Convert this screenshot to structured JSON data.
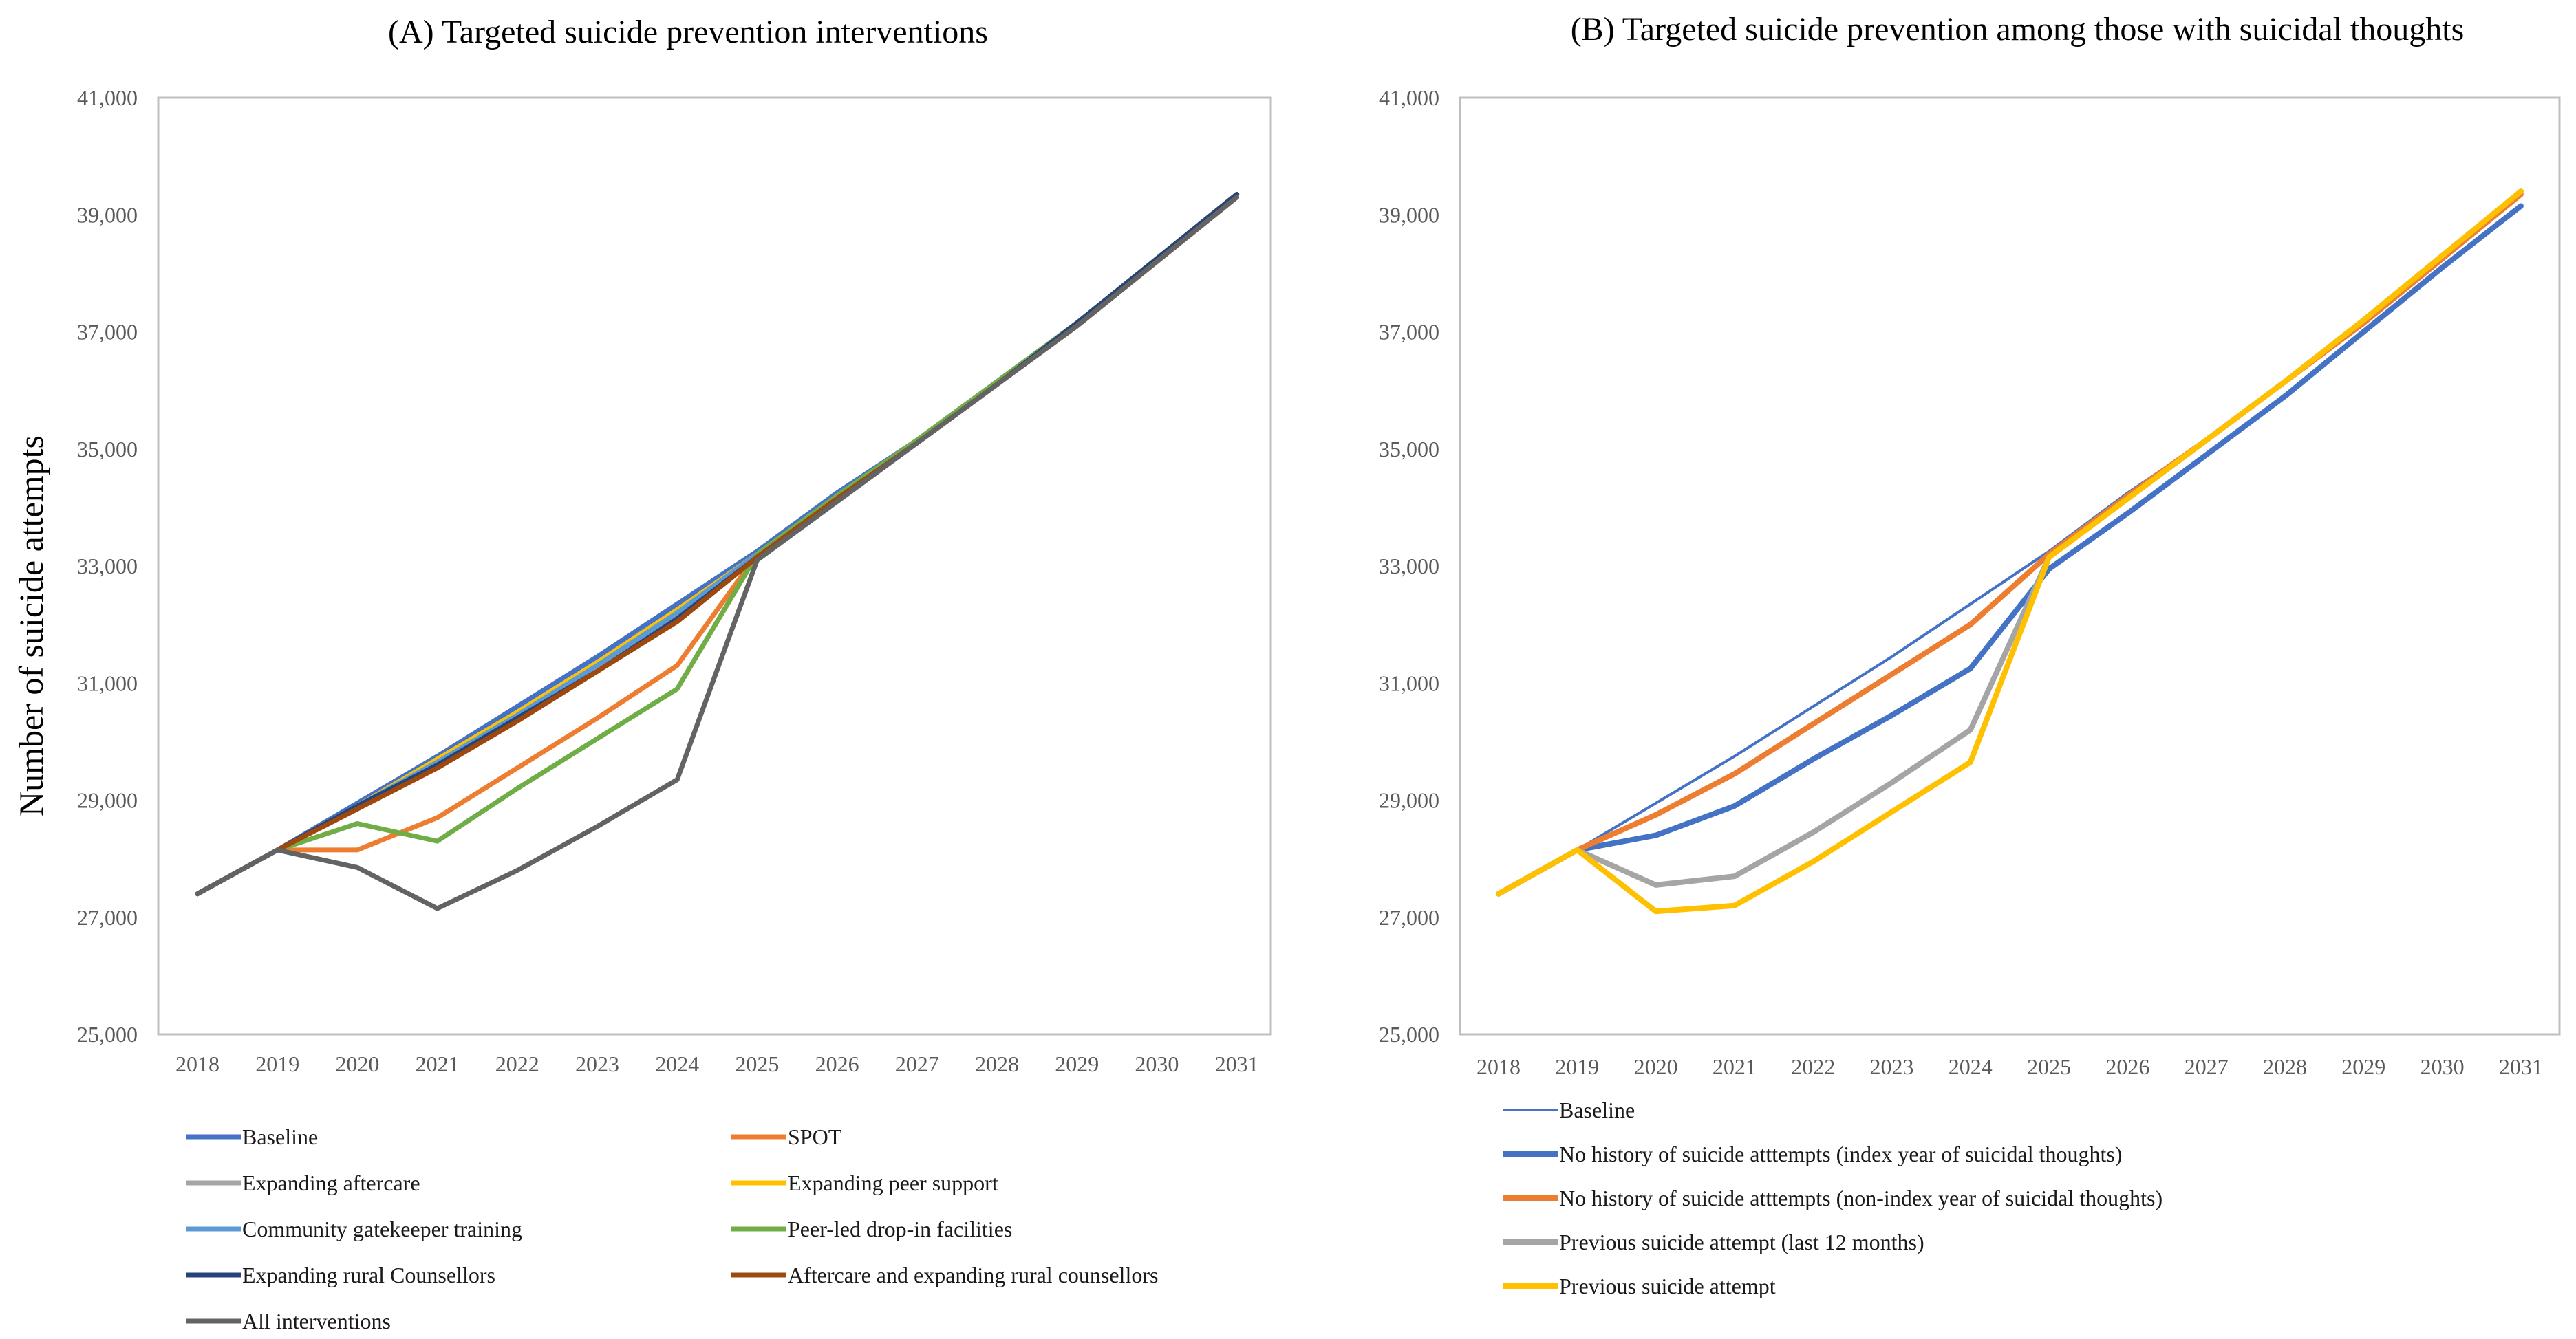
{
  "chart_data": [
    {
      "type": "line",
      "title": "(A) Targeted suicide prevention interventions",
      "ylabel": "Number of suicide attempts",
      "xlabel": "",
      "ylim": [
        25000,
        41000
      ],
      "yticks": [
        25000,
        27000,
        29000,
        31000,
        33000,
        35000,
        37000,
        39000,
        41000
      ],
      "ytick_labels": [
        "25,000",
        "27,000",
        "29,000",
        "31,000",
        "33,000",
        "35,000",
        "37,000",
        "39,000",
        "41,000"
      ],
      "x": [
        "2018",
        "2019",
        "2020",
        "2021",
        "2022",
        "2023",
        "2024",
        "2025",
        "2026",
        "2027",
        "2028",
        "2029",
        "2030",
        "2031"
      ],
      "legend_position": "bottom",
      "series": [
        {
          "name": "Baseline",
          "color": "#4472C4",
          "width": 7,
          "values": [
            27400,
            28150,
            28950,
            29750,
            30600,
            31450,
            32350,
            33250,
            34250,
            35150,
            36150,
            37150,
            38250,
            39350
          ]
        },
        {
          "name": "SPOT",
          "color": "#ED7D31",
          "width": 7,
          "values": [
            27400,
            28150,
            28150,
            28700,
            29550,
            30400,
            31300,
            33200,
            34200,
            35150,
            36150,
            37150,
            38250,
            39350
          ]
        },
        {
          "name": "Expanding aftercare",
          "color": "#A5A5A5",
          "width": 7,
          "values": [
            27400,
            28150,
            28900,
            29700,
            30500,
            31350,
            32250,
            33200,
            34200,
            35150,
            36150,
            37150,
            38250,
            39350
          ]
        },
        {
          "name": "Expanding peer support",
          "color": "#FFC000",
          "width": 7,
          "values": [
            27400,
            28150,
            28900,
            29700,
            30500,
            31350,
            32250,
            33200,
            34200,
            35150,
            36150,
            37150,
            38250,
            39350
          ]
        },
        {
          "name": "Community gatekeeper training",
          "color": "#5B9BD5",
          "width": 7,
          "values": [
            27400,
            28150,
            28900,
            29650,
            30450,
            31300,
            32200,
            33200,
            34200,
            35150,
            36150,
            37150,
            38250,
            39350
          ]
        },
        {
          "name": "Peer-led drop-in facilities",
          "color": "#70AD47",
          "width": 7,
          "values": [
            27400,
            28150,
            28600,
            28300,
            29200,
            30050,
            30900,
            33200,
            34200,
            35150,
            36150,
            37150,
            38250,
            39350
          ]
        },
        {
          "name": "Expanding rural Counsellors",
          "color": "#264478",
          "width": 7,
          "values": [
            27400,
            28150,
            28900,
            29600,
            30400,
            31200,
            32100,
            33150,
            34150,
            35100,
            36100,
            37150,
            38250,
            39350
          ]
        },
        {
          "name": "Aftercare and expanding rural counsellors",
          "color": "#9E480E",
          "width": 7,
          "values": [
            27400,
            28150,
            28850,
            29550,
            30350,
            31200,
            32050,
            33150,
            34150,
            35100,
            36100,
            37100,
            38200,
            39300
          ]
        },
        {
          "name": "All interventions",
          "color": "#636363",
          "width": 7,
          "values": [
            27400,
            28150,
            27850,
            27150,
            27800,
            28550,
            29350,
            33100,
            34100,
            35100,
            36100,
            37100,
            38200,
            39300
          ]
        }
      ]
    },
    {
      "type": "line",
      "title": "(B) Targeted suicide prevention among those with suicidal thoughts",
      "ylabel": "",
      "xlabel": "",
      "ylim": [
        25000,
        41000
      ],
      "yticks": [
        25000,
        27000,
        29000,
        31000,
        33000,
        35000,
        37000,
        39000,
        41000
      ],
      "ytick_labels": [
        "25,000",
        "27,000",
        "29,000",
        "31,000",
        "33,000",
        "35,000",
        "37,000",
        "39,000",
        "41,000"
      ],
      "x": [
        "2018",
        "2019",
        "2020",
        "2021",
        "2022",
        "2023",
        "2024",
        "2025",
        "2026",
        "2027",
        "2028",
        "2029",
        "2030",
        "2031"
      ],
      "legend_position": "bottom",
      "series": [
        {
          "name": "Baseline",
          "color": "#4472C4",
          "width": 4,
          "values": [
            27400,
            28150,
            28950,
            29750,
            30600,
            31450,
            32350,
            33250,
            34250,
            35150,
            36150,
            37150,
            38250,
            39350
          ]
        },
        {
          "name": "No history of suicide atttempts (index year of suicidal thoughts)",
          "color": "#4472C4",
          "width": 8,
          "values": [
            27400,
            28150,
            28400,
            28900,
            29700,
            30450,
            31250,
            32950,
            33900,
            34900,
            35900,
            37000,
            38100,
            39150
          ]
        },
        {
          "name": "No history of suicide atttempts (non-index year of suicidal thoughts)",
          "color": "#ED7D31",
          "width": 8,
          "values": [
            27400,
            28150,
            28750,
            29450,
            30300,
            31150,
            32000,
            33200,
            34200,
            35150,
            36150,
            37150,
            38250,
            39350
          ]
        },
        {
          "name": "Previous suicide attempt (last 12 months)",
          "color": "#A5A5A5",
          "width": 8,
          "values": [
            27400,
            28150,
            27550,
            27700,
            28450,
            29300,
            30200,
            33150,
            34150,
            35150,
            36150,
            37200,
            38300,
            39400
          ]
        },
        {
          "name": "Previous suicide attempt",
          "color": "#FFC000",
          "width": 8,
          "values": [
            27400,
            28150,
            27100,
            27200,
            27950,
            28800,
            29650,
            33150,
            34150,
            35150,
            36150,
            37200,
            38300,
            39400
          ]
        }
      ]
    }
  ]
}
